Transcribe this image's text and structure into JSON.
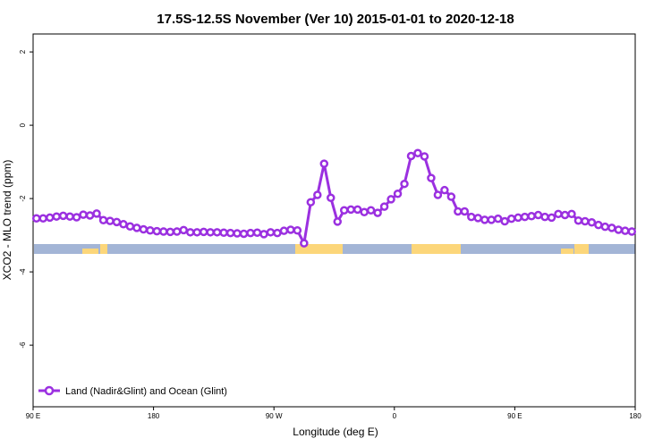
{
  "chart_data": {
    "type": "line",
    "title": "17.5S-12.5S November (Ver 10)   2015-01-01 to 2020-12-18",
    "x_label": "Longitude (deg E)",
    "y_label": "XCO2 - MLO trend (ppm)",
    "x": [
      92.5,
      97.5,
      102.5,
      107.5,
      112.5,
      117.5,
      122.5,
      127.5,
      132.5,
      137.5,
      142.5,
      147.5,
      152.5,
      157.5,
      162.5,
      167.5,
      172.5,
      177.5,
      182.5,
      187.5,
      192.5,
      197.5,
      202.5,
      207.5,
      212.5,
      217.5,
      222.5,
      227.5,
      232.5,
      237.5,
      242.5,
      247.5,
      252.5,
      257.5,
      262.5,
      267.5,
      272.5,
      277.5,
      282.5,
      287.5,
      292.5,
      297.5,
      302.5,
      307.5,
      312.5,
      317.5,
      322.5,
      327.5,
      332.5,
      337.5,
      342.5,
      347.5,
      352.5,
      357.5,
      362.5,
      367.5,
      372.5,
      377.5,
      382.5,
      387.5,
      392.5,
      397.5,
      402.5,
      407.5,
      412.5,
      417.5,
      422.5,
      427.5,
      432.5,
      437.5,
      442.5,
      447.5,
      452.5,
      457.5,
      462.5,
      467.5,
      472.5,
      477.5,
      482.5,
      487.5,
      492.5,
      497.5,
      502.5,
      507.5,
      512.5,
      517.5,
      522.5,
      527.5,
      532.5,
      537.5
    ],
    "series": [
      {
        "name": "Land (Nadir&Glint) and Ocean (Glint)",
        "color": "#9b30e0",
        "values": [
          -2.54,
          -2.54,
          -2.52,
          -2.49,
          -2.47,
          -2.49,
          -2.51,
          -2.44,
          -2.46,
          -2.41,
          -2.59,
          -2.61,
          -2.64,
          -2.7,
          -2.76,
          -2.8,
          -2.84,
          -2.87,
          -2.89,
          -2.9,
          -2.91,
          -2.9,
          -2.86,
          -2.92,
          -2.92,
          -2.91,
          -2.92,
          -2.92,
          -2.93,
          -2.94,
          -2.95,
          -2.96,
          -2.94,
          -2.93,
          -2.97,
          -2.92,
          -2.94,
          -2.88,
          -2.85,
          -2.87,
          -3.22,
          -2.1,
          -1.9,
          -1.05,
          -1.98,
          -2.63,
          -2.32,
          -2.3,
          -2.3,
          -2.37,
          -2.32,
          -2.39,
          -2.22,
          -2.02,
          -1.87,
          -1.6,
          -0.84,
          -0.76,
          -0.85,
          -1.44,
          -1.9,
          -1.77,
          -1.95,
          -2.35,
          -2.35,
          -2.5,
          -2.53,
          -2.58,
          -2.58,
          -2.55,
          -2.62,
          -2.55,
          -2.52,
          -2.5,
          -2.48,
          -2.45,
          -2.5,
          -2.52,
          -2.42,
          -2.45,
          -2.42,
          -2.6,
          -2.62,
          -2.65,
          -2.72,
          -2.77,
          -2.8,
          -2.85,
          -2.88,
          -2.9
        ]
      }
    ],
    "xlim": [
      90,
      540
    ],
    "xticks": [
      {
        "value": 90,
        "label": "90 E"
      },
      180,
      {
        "value": 270,
        "label": "90 W"
      },
      {
        "value": 360,
        "label": "0"
      },
      {
        "value": 450,
        "label": "90 E"
      },
      {
        "value": 540,
        "label": "180"
      }
    ],
    "ylim": [
      -7.68,
      2.49
    ],
    "yticks": [
      2,
      0,
      -2,
      -4,
      -6
    ],
    "legend": "bottom-left"
  }
}
